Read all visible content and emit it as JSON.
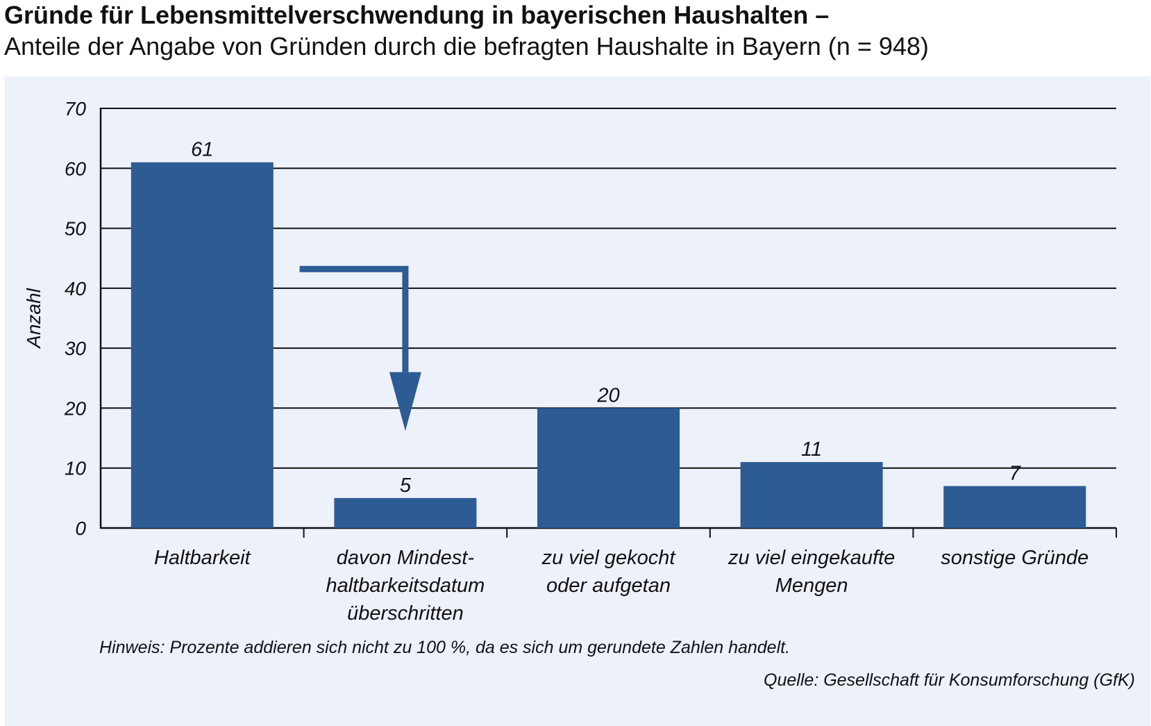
{
  "title": "Gründe für Lebensmittelverschwendung in bayerischen Haushalten –",
  "subtitle": "Anteile der Angabe von Gründen durch die befragten Haushalte in Bayern (n = 948)",
  "note": "Hinweis: Prozente addieren sich nicht zu 100 %, da es sich um gerundete Zahlen handelt.",
  "source": "Quelle: Gesellschaft für Konsumforschung (GfK)",
  "colors": {
    "bar": "#2d5b93",
    "arrow": "#2d5b93",
    "background": "#edf1f9",
    "grid": "#111111"
  },
  "chart_data": {
    "type": "bar",
    "ylabel": "Anzahl",
    "ylim": [
      0,
      70
    ],
    "yticks": [
      0,
      10,
      20,
      30,
      40,
      50,
      60,
      70
    ],
    "grid": true,
    "categories": [
      [
        "Haltbarkeit"
      ],
      [
        "davon Mindest-",
        "haltbarkeitsdatum",
        "überschritten"
      ],
      [
        "zu viel gekocht",
        "oder aufgetan"
      ],
      [
        "zu viel eingekaufte",
        "Mengen"
      ],
      [
        "sonstige Gründe"
      ]
    ],
    "values": [
      61,
      5,
      20,
      11,
      7
    ],
    "annotation": "arrow from Haltbarkeit to davon Mindesthaltbarkeitsdatum überschritten"
  }
}
